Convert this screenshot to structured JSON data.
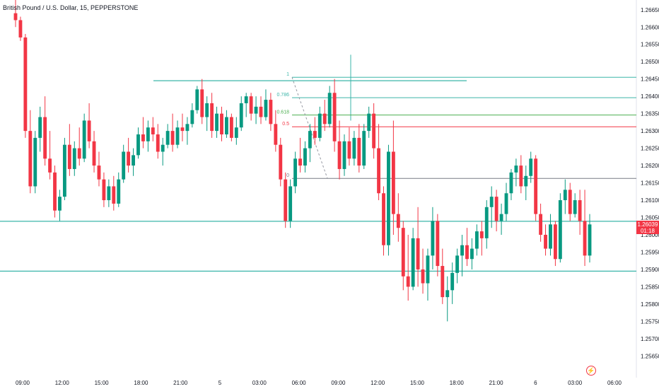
{
  "header": {
    "title": "British Pound / U.S. Dollar, 15, PEPPERSTONE"
  },
  "price_badge": {
    "price": "1.26039",
    "countdown": "01:18"
  },
  "icons": {
    "flash": "lightning-icon"
  },
  "colors": {
    "up": "#089981",
    "down": "#f23645",
    "level": "#3bb5a9",
    "text": "#131722"
  },
  "chart_data": {
    "type": "candlestick",
    "symbol": "British Pound / U.S. Dollar",
    "interval": "15",
    "source": "PEPPERSTONE",
    "y_range": [
      1.2562,
      1.2667
    ],
    "y_ticks": [
      "1.26650",
      "1.26600",
      "1.26550",
      "1.26500",
      "1.26450",
      "1.26400",
      "1.26350",
      "1.26300",
      "1.26250",
      "1.26200",
      "1.26150",
      "1.26100",
      "1.26050",
      "1.26000",
      "1.25950",
      "1.25900",
      "1.25850",
      "1.25800",
      "1.25750",
      "1.25700",
      "1.25650"
    ],
    "x_ticks": [
      "09:00",
      "12:00",
      "15:00",
      "18:00",
      "21:00",
      "5",
      "03:00",
      "06:00",
      "09:00",
      "12:00",
      "15:00",
      "18:00",
      "21:00",
      "6",
      "03:00",
      "06:00"
    ],
    "current_price": 1.26039,
    "horizontal_levels": [
      1.26039,
      1.25895
    ],
    "fibonacci": {
      "levels": [
        {
          "label": "1",
          "price": 1.26455,
          "color": "#3bb5a9"
        },
        {
          "label": "0.786",
          "price": 1.26396,
          "color": "#3bb5a9"
        },
        {
          "label": "0.618",
          "price": 1.26346,
          "color": "#4caf50"
        },
        {
          "label": "0.5",
          "price": 1.26312,
          "color": "#f23645"
        },
        {
          "label": "0",
          "price": 1.26163,
          "color": "#787b86"
        }
      ]
    },
    "candles": [
      [
        1.2664,
        1.2668,
        1.266,
        1.2662
      ],
      [
        1.2662,
        1.2663,
        1.2656,
        1.2657
      ],
      [
        1.2657,
        1.2658,
        1.2628,
        1.263
      ],
      [
        1.263,
        1.2636,
        1.2612,
        1.2614
      ],
      [
        1.2614,
        1.263,
        1.2612,
        1.2628
      ],
      [
        1.2628,
        1.2637,
        1.2624,
        1.2634
      ],
      [
        1.2634,
        1.264,
        1.262,
        1.2622
      ],
      [
        1.2622,
        1.263,
        1.2616,
        1.2618
      ],
      [
        1.2618,
        1.262,
        1.2605,
        1.2607
      ],
      [
        1.2607,
        1.2613,
        1.2604,
        1.2611
      ],
      [
        1.2611,
        1.2628,
        1.261,
        1.2626
      ],
      [
        1.2626,
        1.2632,
        1.2617,
        1.2619
      ],
      [
        1.2619,
        1.2627,
        1.2617,
        1.2625
      ],
      [
        1.2625,
        1.2631,
        1.262,
        1.2622
      ],
      [
        1.2622,
        1.2635,
        1.2621,
        1.2633
      ],
      [
        1.2633,
        1.2638,
        1.2625,
        1.2627
      ],
      [
        1.2627,
        1.263,
        1.2618,
        1.262
      ],
      [
        1.262,
        1.2624,
        1.2614,
        1.2616
      ],
      [
        1.2616,
        1.2618,
        1.2608,
        1.261
      ],
      [
        1.261,
        1.2616,
        1.2608,
        1.2614
      ],
      [
        1.2614,
        1.2617,
        1.2607,
        1.2609
      ],
      [
        1.2609,
        1.2618,
        1.2608,
        1.2616
      ],
      [
        1.2616,
        1.2626,
        1.2615,
        1.2624
      ],
      [
        1.2624,
        1.2628,
        1.2618,
        1.262
      ],
      [
        1.262,
        1.2625,
        1.2617,
        1.2623
      ],
      [
        1.2623,
        1.2631,
        1.2622,
        1.2629
      ],
      [
        1.2629,
        1.2634,
        1.2625,
        1.2627
      ],
      [
        1.2627,
        1.2633,
        1.2624,
        1.2631
      ],
      [
        1.2631,
        1.2634,
        1.2627,
        1.2629
      ],
      [
        1.2629,
        1.2632,
        1.2622,
        1.2624
      ],
      [
        1.2624,
        1.2628,
        1.262,
        1.2626
      ],
      [
        1.2626,
        1.2632,
        1.2625,
        1.263
      ],
      [
        1.263,
        1.2635,
        1.2624,
        1.2626
      ],
      [
        1.2626,
        1.2633,
        1.2625,
        1.2631
      ],
      [
        1.2631,
        1.2635,
        1.2627,
        1.263
      ],
      [
        1.263,
        1.2634,
        1.2626,
        1.2632
      ],
      [
        1.2632,
        1.2638,
        1.2631,
        1.2636
      ],
      [
        1.2636,
        1.2643,
        1.2635,
        1.2642
      ],
      [
        1.2642,
        1.2645,
        1.2632,
        1.2634
      ],
      [
        1.2634,
        1.264,
        1.263,
        1.2638
      ],
      [
        1.2638,
        1.2641,
        1.2628,
        1.263
      ],
      [
        1.263,
        1.2637,
        1.2628,
        1.2635
      ],
      [
        1.2635,
        1.2637,
        1.2627,
        1.2629
      ],
      [
        1.2629,
        1.2636,
        1.2628,
        1.2634
      ],
      [
        1.2634,
        1.2635,
        1.2627,
        1.2628
      ],
      [
        1.2628,
        1.2634,
        1.2626,
        1.2631
      ],
      [
        1.2631,
        1.264,
        1.263,
        1.2638
      ],
      [
        1.2638,
        1.2641,
        1.2634,
        1.264
      ],
      [
        1.264,
        1.2641,
        1.2633,
        1.2635
      ],
      [
        1.2635,
        1.264,
        1.2632,
        1.2637
      ],
      [
        1.2637,
        1.264,
        1.2632,
        1.2634
      ],
      [
        1.2634,
        1.2642,
        1.2633,
        1.2639
      ],
      [
        1.2639,
        1.2641,
        1.263,
        1.2632
      ],
      [
        1.2632,
        1.2636,
        1.2624,
        1.2626
      ],
      [
        1.2626,
        1.2628,
        1.2614,
        1.2616
      ],
      [
        1.2616,
        1.2618,
        1.2602,
        1.2604
      ],
      [
        1.2604,
        1.2616,
        1.2602,
        1.2614
      ],
      [
        1.2614,
        1.2624,
        1.2612,
        1.2622
      ],
      [
        1.2622,
        1.2628,
        1.2618,
        1.262
      ],
      [
        1.262,
        1.2627,
        1.2618,
        1.2625
      ],
      [
        1.2625,
        1.2632,
        1.2621,
        1.263
      ],
      [
        1.263,
        1.2634,
        1.2626,
        1.2628
      ],
      [
        1.2628,
        1.2637,
        1.2627,
        1.2635
      ],
      [
        1.2635,
        1.2639,
        1.263,
        1.2632
      ],
      [
        1.2632,
        1.2643,
        1.2631,
        1.2641
      ],
      [
        1.2641,
        1.2645,
        1.2624,
        1.2627
      ],
      [
        1.2627,
        1.2633,
        1.2616,
        1.2619
      ],
      [
        1.2619,
        1.2629,
        1.2617,
        1.2627
      ],
      [
        1.2627,
        1.2631,
        1.262,
        1.2622
      ],
      [
        1.2622,
        1.263,
        1.262,
        1.2628
      ],
      [
        1.2628,
        1.2632,
        1.2618,
        1.262
      ],
      [
        1.262,
        1.2632,
        1.2619,
        1.263
      ],
      [
        1.263,
        1.2637,
        1.2628,
        1.2635
      ],
      [
        1.2635,
        1.2638,
        1.2622,
        1.2625
      ],
      [
        1.2625,
        1.2632,
        1.261,
        1.2612
      ],
      [
        1.2612,
        1.2614,
        1.2594,
        1.2597
      ],
      [
        1.2597,
        1.2626,
        1.2594,
        1.2624
      ],
      [
        1.2624,
        1.2633,
        1.26,
        1.2606
      ],
      [
        1.2606,
        1.2612,
        1.2598,
        1.2602
      ],
      [
        1.2602,
        1.2604,
        1.2584,
        1.2588
      ],
      [
        1.2588,
        1.26,
        1.2581,
        1.2585
      ],
      [
        1.2585,
        1.2602,
        1.2584,
        1.2599
      ],
      [
        1.2599,
        1.2608,
        1.2585,
        1.259
      ],
      [
        1.259,
        1.2596,
        1.2583,
        1.2586
      ],
      [
        1.2586,
        1.2596,
        1.2581,
        1.2594
      ],
      [
        1.2594,
        1.2608,
        1.259,
        1.2604
      ],
      [
        1.2604,
        1.2606,
        1.2588,
        1.2591
      ],
      [
        1.2591,
        1.2596,
        1.258,
        1.2582
      ],
      [
        1.2582,
        1.2588,
        1.2575,
        1.2584
      ],
      [
        1.2584,
        1.2592,
        1.258,
        1.2589
      ],
      [
        1.2589,
        1.2596,
        1.2586,
        1.2594
      ],
      [
        1.2594,
        1.26,
        1.2588,
        1.2597
      ],
      [
        1.2597,
        1.2602,
        1.2591,
        1.2593
      ],
      [
        1.2593,
        1.2599,
        1.259,
        1.2596
      ],
      [
        1.2596,
        1.2603,
        1.2594,
        1.2601
      ],
      [
        1.2601,
        1.2604,
        1.2594,
        1.2599
      ],
      [
        1.2599,
        1.261,
        1.2596,
        1.2608
      ],
      [
        1.2608,
        1.2614,
        1.2602,
        1.2611
      ],
      [
        1.2611,
        1.2613,
        1.2601,
        1.2604
      ],
      [
        1.2604,
        1.2609,
        1.26,
        1.2606
      ],
      [
        1.2606,
        1.2615,
        1.2604,
        1.2612
      ],
      [
        1.2612,
        1.2619,
        1.261,
        1.2618
      ],
      [
        1.2618,
        1.2622,
        1.2614,
        1.262
      ],
      [
        1.262,
        1.2623,
        1.2612,
        1.2614
      ],
      [
        1.2614,
        1.262,
        1.261,
        1.2617
      ],
      [
        1.2617,
        1.2624,
        1.2615,
        1.2622
      ],
      [
        1.2622,
        1.2623,
        1.2604,
        1.2606
      ],
      [
        1.2606,
        1.2609,
        1.2598,
        1.26
      ],
      [
        1.26,
        1.2603,
        1.2594,
        1.2596
      ],
      [
        1.2596,
        1.2606,
        1.2594,
        1.2603
      ],
      [
        1.2603,
        1.2604,
        1.2591,
        1.2593
      ],
      [
        1.2593,
        1.2612,
        1.2592,
        1.261
      ],
      [
        1.261,
        1.2616,
        1.2606,
        1.2613
      ],
      [
        1.2613,
        1.2615,
        1.2604,
        1.2606
      ],
      [
        1.2606,
        1.2612,
        1.2605,
        1.261
      ],
      [
        1.261,
        1.2613,
        1.26,
        1.2604
      ],
      [
        1.2604,
        1.2613,
        1.2591,
        1.2594
      ],
      [
        1.2594,
        1.2606,
        1.2592,
        1.2603
      ]
    ]
  }
}
